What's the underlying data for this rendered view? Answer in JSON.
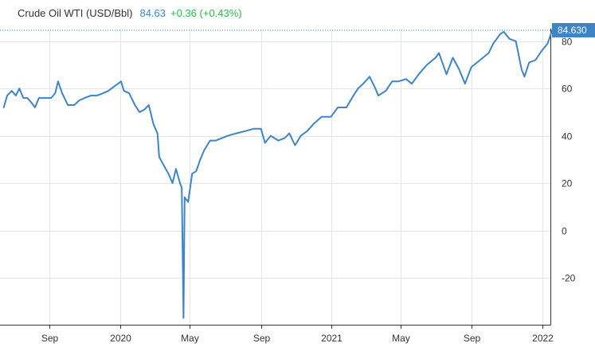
{
  "header": {
    "title": "Crude Oil WTI (USD/Bbl)",
    "price": "84.63",
    "change": "+0.36 (+0.43%)"
  },
  "colors": {
    "line": "#3d85c6",
    "up": "#2db84d",
    "grid": "#e6e6e6",
    "axis": "#333333",
    "badge_bg": "#3d85c6"
  },
  "chart_data": {
    "type": "line",
    "title": "Crude Oil WTI (USD/Bbl)",
    "ylim": [
      -40,
      85
    ],
    "y_ticks": [
      -20,
      0,
      20,
      40,
      60,
      80
    ],
    "x_ticks": [
      {
        "label": "Sep",
        "x": "2019-09"
      },
      {
        "label": "2020",
        "x": "2020-01"
      },
      {
        "label": "May",
        "x": "2020-05"
      },
      {
        "label": "Sep",
        "x": "2020-09"
      },
      {
        "label": "2021",
        "x": "2021-01"
      },
      {
        "label": "May",
        "x": "2021-05"
      },
      {
        "label": "Sep",
        "x": "2021-09"
      },
      {
        "label": "2022",
        "x": "2022-01"
      }
    ],
    "last_value_label": "84.630",
    "last_value": 84.63,
    "grid": true,
    "series": [
      {
        "x": [
          "2019-06-14",
          "2019-06-20",
          "2019-06-28",
          "2019-07-05",
          "2019-07-11",
          "2019-07-18",
          "2019-07-25",
          "2019-08-01",
          "2019-08-07",
          "2019-08-14",
          "2019-08-21",
          "2019-08-28",
          "2019-09-04",
          "2019-09-11",
          "2019-09-16",
          "2019-09-23",
          "2019-10-03",
          "2019-10-14",
          "2019-10-23",
          "2019-11-01",
          "2019-11-12",
          "2019-11-22",
          "2019-12-03",
          "2019-12-12",
          "2019-12-23",
          "2020-01-03",
          "2020-01-08",
          "2020-01-17",
          "2020-01-27",
          "2020-02-04",
          "2020-02-12",
          "2020-02-20",
          "2020-02-28",
          "2020-03-06",
          "2020-03-09",
          "2020-03-18",
          "2020-03-25",
          "2020-04-01",
          "2020-04-07",
          "2020-04-14",
          "2020-04-17",
          "2020-04-20",
          "2020-04-22",
          "2020-04-28",
          "2020-05-05",
          "2020-05-12",
          "2020-05-19",
          "2020-05-26",
          "2020-06-05",
          "2020-06-15",
          "2020-06-25",
          "2020-07-06",
          "2020-07-20",
          "2020-08-05",
          "2020-08-20",
          "2020-09-01",
          "2020-09-08",
          "2020-09-18",
          "2020-10-01",
          "2020-10-12",
          "2020-10-20",
          "2020-10-30",
          "2020-11-09",
          "2020-11-20",
          "2020-12-01",
          "2020-12-15",
          "2020-12-31",
          "2021-01-12",
          "2021-01-27",
          "2021-02-08",
          "2021-02-16",
          "2021-02-25",
          "2021-03-08",
          "2021-03-18",
          "2021-03-23",
          "2021-04-05",
          "2021-04-16",
          "2021-04-27",
          "2021-05-10",
          "2021-05-20",
          "2021-06-01",
          "2021-06-15",
          "2021-06-30",
          "2021-07-06",
          "2021-07-19",
          "2021-07-30",
          "2021-08-10",
          "2021-08-20",
          "2021-08-31",
          "2021-09-15",
          "2021-09-30",
          "2021-10-08",
          "2021-10-20",
          "2021-10-26",
          "2021-11-05",
          "2021-11-16",
          "2021-11-26",
          "2021-12-01",
          "2021-12-09",
          "2021-12-20",
          "2021-12-31",
          "2022-01-10",
          "2022-01-18"
        ],
        "y": [
          52,
          57,
          59,
          57,
          60,
          56,
          56,
          54,
          52,
          56,
          56,
          56,
          56,
          58,
          63,
          58,
          53,
          53,
          55,
          56,
          57,
          57,
          58,
          59,
          61,
          63,
          59,
          58,
          53,
          50,
          51,
          53,
          45,
          41,
          31,
          27,
          24,
          20,
          26,
          20,
          18,
          -37,
          14,
          12,
          24,
          25,
          30,
          34,
          38,
          38,
          39,
          40,
          41,
          42,
          43,
          43,
          37,
          40,
          38,
          39,
          41,
          36,
          40,
          42,
          45,
          48,
          48,
          52,
          52,
          57,
          60,
          62,
          65,
          60,
          57,
          59,
          63,
          63,
          64,
          62,
          66,
          70,
          73,
          75,
          66,
          73,
          68,
          62,
          69,
          72,
          75,
          79,
          83,
          84,
          81,
          80,
          68,
          65,
          71,
          72,
          76,
          79,
          84.6
        ]
      }
    ]
  }
}
